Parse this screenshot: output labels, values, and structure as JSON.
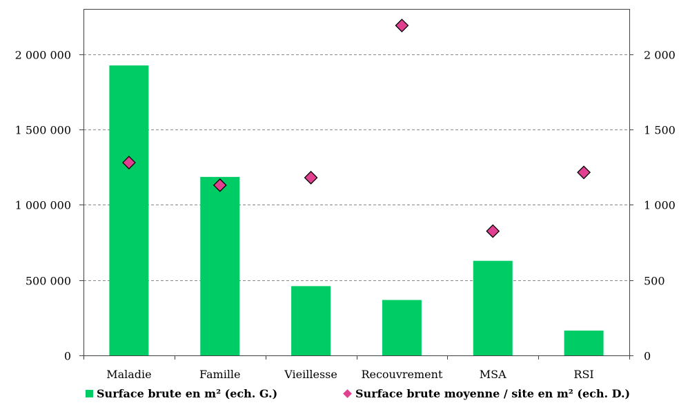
{
  "chart_data": {
    "type": "bar",
    "categories": [
      "Maladie",
      "Famille",
      "Vieillesse",
      "Recouvrement",
      "MSA",
      "RSI"
    ],
    "series": [
      {
        "name": "Surface brute en m² (ech. G.)",
        "type": "bar",
        "axis": "left",
        "color": "#00CC66",
        "values": [
          1925000,
          1185000,
          460000,
          368000,
          628000,
          165000
        ]
      },
      {
        "name": "Surface brute moyenne / site en m² (ech. D.)",
        "type": "scatter",
        "axis": "right",
        "color": "#E0408F",
        "marker": "diamond",
        "values": [
          1280,
          1130,
          1180,
          2190,
          825,
          1215
        ]
      }
    ],
    "y_left": {
      "ylim": [
        0,
        2300000
      ],
      "ticks": [
        0,
        500000,
        1000000,
        1500000,
        2000000
      ],
      "tick_labels": [
        "0",
        "500 000",
        "1 000 000",
        "1 500 000",
        "2 000 000"
      ]
    },
    "y_right": {
      "ylim": [
        0,
        2300
      ],
      "ticks": [
        0,
        500,
        1000,
        1500,
        2000
      ],
      "tick_labels": [
        "0",
        "500",
        "1 000",
        "1 500",
        "2 000"
      ]
    },
    "grid": true,
    "legend_position": "bottom",
    "title": "",
    "xlabel": "",
    "ylabel": ""
  }
}
